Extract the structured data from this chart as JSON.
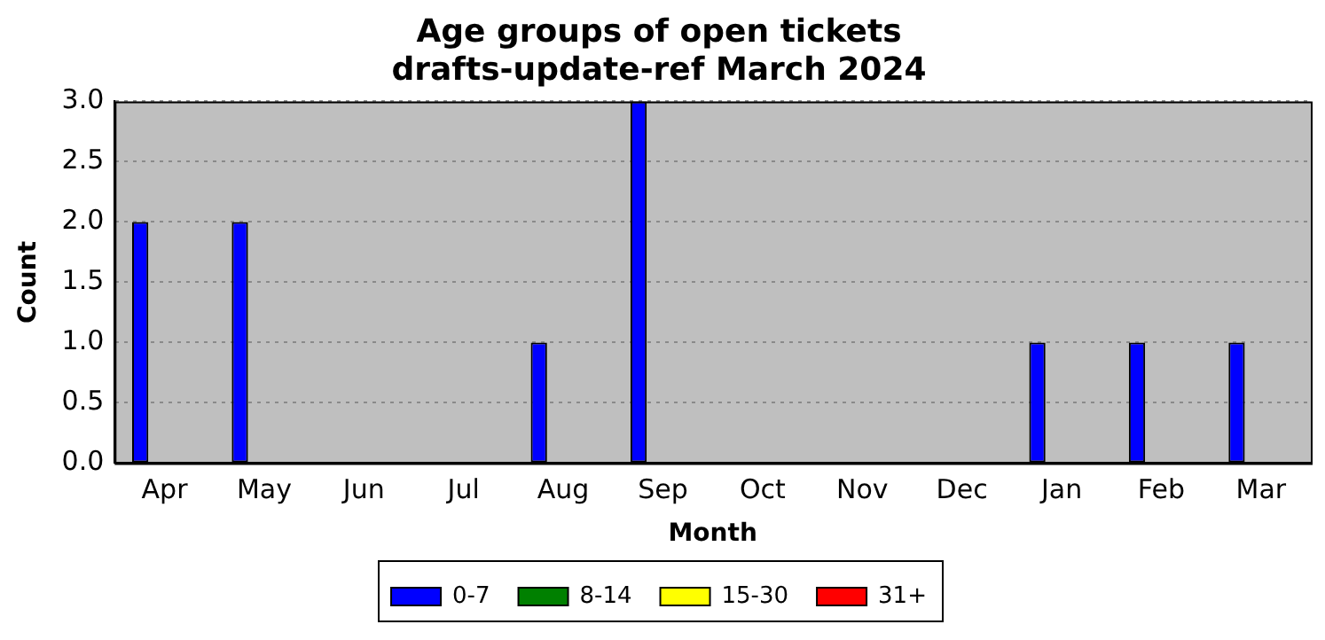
{
  "chart_data": {
    "type": "bar",
    "title": "Age groups of open tickets",
    "subtitle": "drafts-update-ref March 2024",
    "xlabel": "Month",
    "ylabel": "Count",
    "categories": [
      "Apr",
      "May",
      "Jun",
      "Jul",
      "Aug",
      "Sep",
      "Oct",
      "Nov",
      "Dec",
      "Jan",
      "Feb",
      "Mar"
    ],
    "series": [
      {
        "name": "0-7",
        "color": "#0000ff",
        "values": [
          2,
          2,
          0,
          0,
          1,
          3,
          0,
          0,
          0,
          1,
          1,
          1
        ]
      },
      {
        "name": "8-14",
        "color": "#008000",
        "values": [
          0,
          0,
          0,
          0,
          0,
          0,
          0,
          0,
          0,
          0,
          0,
          0
        ]
      },
      {
        "name": "15-30",
        "color": "#ffff00",
        "values": [
          0,
          0,
          0,
          0,
          0,
          0,
          0,
          0,
          0,
          0,
          0,
          0
        ]
      },
      {
        "name": "31+",
        "color": "#ff0000",
        "values": [
          0,
          0,
          0,
          0,
          0,
          0,
          0,
          0,
          0,
          0,
          0,
          0
        ]
      }
    ],
    "ylim": [
      0,
      3
    ],
    "yticks": [
      {
        "value": 0,
        "label": "0.0"
      },
      0.5,
      {
        "value": 1,
        "label": "1.0"
      },
      1.5,
      {
        "value": 2,
        "label": "2.0"
      },
      2.5,
      {
        "value": 3,
        "label": "3.0"
      }
    ],
    "grid": "y",
    "legend": "bottom"
  }
}
